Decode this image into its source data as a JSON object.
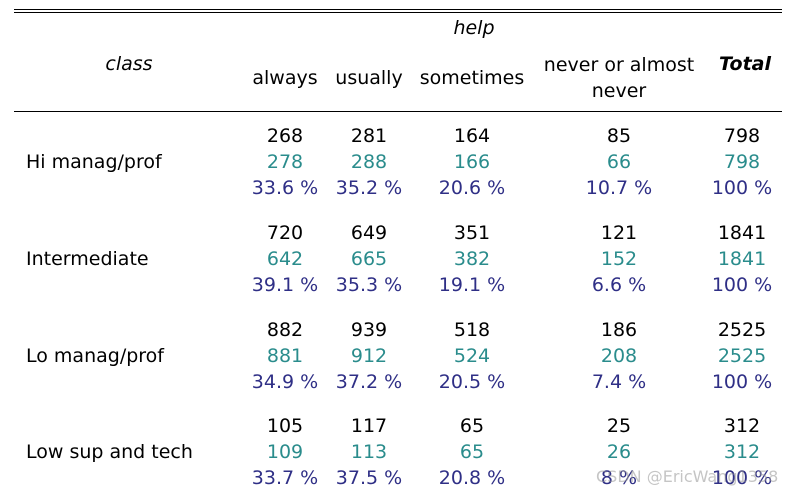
{
  "header": {
    "row_var": "class",
    "col_var": "help",
    "columns": [
      "always",
      "usually",
      "sometimes",
      "never or almost never",
      "Total"
    ]
  },
  "rows": [
    {
      "label": "Hi manag/prof",
      "observed": [
        "268",
        "281",
        "164",
        "85",
        "798"
      ],
      "expected": [
        "278",
        "288",
        "166",
        "66",
        "798"
      ],
      "percent": [
        "33.6 %",
        "35.2 %",
        "20.6 %",
        "10.7 %",
        "100 %"
      ]
    },
    {
      "label": "Intermediate",
      "observed": [
        "720",
        "649",
        "351",
        "121",
        "1841"
      ],
      "expected": [
        "642",
        "665",
        "382",
        "152",
        "1841"
      ],
      "percent": [
        "39.1 %",
        "35.3 %",
        "19.1 %",
        "6.6 %",
        "100 %"
      ]
    },
    {
      "label": "Lo manag/prof",
      "observed": [
        "882",
        "939",
        "518",
        "186",
        "2525"
      ],
      "expected": [
        "881",
        "912",
        "524",
        "208",
        "2525"
      ],
      "percent": [
        "34.9 %",
        "37.2 %",
        "20.5 %",
        "7.4 %",
        "100 %"
      ]
    },
    {
      "label": "Low sup and tech",
      "observed": [
        "105",
        "117",
        "65",
        "25",
        "312"
      ],
      "expected": [
        "109",
        "113",
        "65",
        "26",
        "312"
      ],
      "percent": [
        "33.7 %",
        "37.5 %",
        "20.8 %",
        "8 %",
        "100 %"
      ]
    }
  ],
  "colors": {
    "observed": "#000000",
    "expected": "#2a8c8c",
    "percent": "#2f2f86"
  },
  "watermark": "CSDN @EricWang1358"
}
